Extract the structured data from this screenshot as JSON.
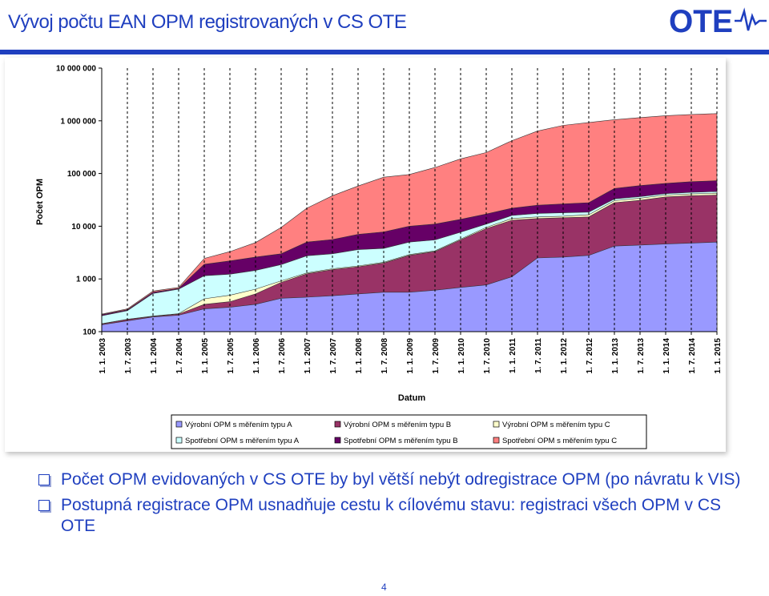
{
  "slide": {
    "title": "Vývoj počtu EAN OPM registrovaných v CS OTE",
    "page_number": "4",
    "bullets": [
      "Počet OPM evidovaných v CS OTE by byl větší nebýt odregistrace OPM (po návratu k VIS)",
      "Postupná registrace OPM usnadňuje cestu k cílovému stavu: registraci všech OPM v CS OTE"
    ],
    "logo": {
      "text": "OTE",
      "icon": "ote-logo-wave-icon",
      "color": "#1f3fbf"
    },
    "accent_color": "#1f3fbf"
  },
  "chart_data": {
    "type": "area",
    "stacked": true,
    "title": "",
    "xlabel": "Datum",
    "ylabel": "Počet OPM",
    "yscale": "log",
    "ylim": [
      100,
      10000000
    ],
    "yticks": [
      100,
      1000,
      10000,
      100000,
      1000000,
      10000000
    ],
    "ytick_labels": [
      "100",
      "1 000",
      "10 000",
      "100 000",
      "1 000 000",
      "10 000 000"
    ],
    "grid": "vertical-dashed",
    "legend_position": "bottom",
    "categories": [
      "1. 1. 2003",
      "1. 7. 2003",
      "1. 1. 2004",
      "1. 7. 2004",
      "1. 1. 2005",
      "1. 7. 2005",
      "1. 1. 2006",
      "1. 7. 2006",
      "1. 1. 2007",
      "1. 7. 2007",
      "1. 1. 2008",
      "1. 7. 2008",
      "1. 1. 2009",
      "1. 7. 2009",
      "1. 1. 2010",
      "1. 7. 2010",
      "1. 1. 2011",
      "1. 7. 2011",
      "1. 1. 2012",
      "1. 7. 2012",
      "1. 1. 2013",
      "1. 7. 2013",
      "1. 1. 2014",
      "1. 7. 2014",
      "1. 1. 2015"
    ],
    "cumulative_top_values": true,
    "series": [
      {
        "name": "Výrobní OPM s měřením typu A",
        "color": "#9999ff",
        "values": [
          135,
          160,
          190,
          205,
          270,
          290,
          330,
          430,
          450,
          480,
          520,
          560,
          560,
          610,
          690,
          770,
          1100,
          2500,
          2600,
          2800,
          4200,
          4400,
          4600,
          4800,
          5000
        ]
      },
      {
        "name": "Výrobní OPM s měřením typu B",
        "color": "#993366",
        "values": [
          140,
          170,
          195,
          215,
          330,
          370,
          520,
          860,
          1250,
          1500,
          1700,
          2000,
          2800,
          3300,
          5500,
          9000,
          13000,
          14000,
          14500,
          15000,
          28000,
          31000,
          36000,
          38000,
          39000
        ]
      },
      {
        "name": "Výrobní OPM s měřením typu C",
        "color": "#ffffcc",
        "values": [
          142,
          172,
          197,
          220,
          420,
          490,
          640,
          920,
          1300,
          1560,
          1760,
          2070,
          2900,
          3400,
          5700,
          9500,
          14000,
          15000,
          15500,
          16500,
          30500,
          34000,
          39000,
          41000,
          42500
        ]
      },
      {
        "name": "Spotřební OPM s měřením typu A",
        "color": "#ccffff",
        "values": [
          200,
          250,
          530,
          640,
          1150,
          1230,
          1450,
          1870,
          2750,
          3000,
          3600,
          3800,
          5000,
          5500,
          7700,
          11000,
          16000,
          17500,
          18000,
          18500,
          33000,
          36500,
          41500,
          44000,
          45500
        ]
      },
      {
        "name": "Spotřební OPM s měřením typu B",
        "color": "#660066",
        "values": [
          210,
          260,
          560,
          660,
          1900,
          2200,
          2600,
          3000,
          5000,
          5600,
          7000,
          7800,
          10000,
          11000,
          13500,
          17000,
          22000,
          25000,
          26500,
          28000,
          52000,
          59000,
          65000,
          70000,
          73000
        ]
      },
      {
        "name": "Spotřební OPM s měřením typu C",
        "color": "#ff8080",
        "values": [
          215,
          270,
          590,
          690,
          2450,
          3300,
          4900,
          9500,
          22000,
          38000,
          58000,
          85000,
          96000,
          130000,
          190000,
          250000,
          420000,
          640000,
          820000,
          930000,
          1050000,
          1150000,
          1250000,
          1320000,
          1370000
        ]
      }
    ]
  }
}
